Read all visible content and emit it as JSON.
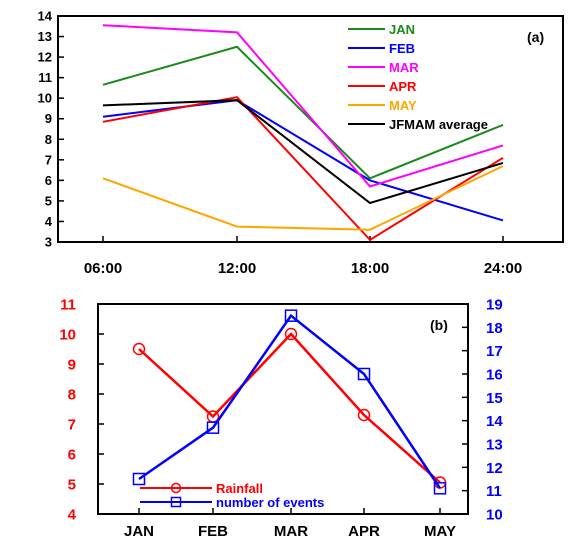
{
  "chart_data": [
    {
      "type": "line",
      "panel_label": "(a)",
      "categories": [
        "06:00",
        "12:00",
        "18:00",
        "24:00"
      ],
      "ylim": [
        3,
        14
      ],
      "yticks": [
        3,
        4,
        5,
        6,
        7,
        8,
        9,
        10,
        11,
        12,
        13,
        14
      ],
      "grid": false,
      "legend_position": "top-right",
      "series": [
        {
          "name": "JAN",
          "color": "#1a8a1a",
          "values": [
            10.65,
            12.5,
            6.1,
            8.7
          ]
        },
        {
          "name": "FEB",
          "color": "#0000ff",
          "values": [
            9.1,
            9.9,
            6.0,
            4.05
          ]
        },
        {
          "name": "MAR",
          "color": "#ff00ff",
          "values": [
            13.55,
            13.2,
            5.7,
            7.7
          ]
        },
        {
          "name": "APR",
          "color": "#ff0000",
          "values": [
            8.85,
            10.05,
            3.1,
            7.1
          ]
        },
        {
          "name": "MAY",
          "color": "#ffa500",
          "values": [
            6.1,
            3.75,
            3.6,
            6.7
          ]
        },
        {
          "name": "JFMAM average",
          "color": "#000000",
          "values": [
            9.65,
            9.9,
            4.9,
            6.85
          ]
        }
      ]
    },
    {
      "type": "line",
      "panel_label": "(b)",
      "categories": [
        "JAN",
        "FEB",
        "MAR",
        "APR",
        "MAY"
      ],
      "ylim_left": [
        4,
        11
      ],
      "yticks_left": [
        4,
        5,
        6,
        7,
        8,
        9,
        10,
        11
      ],
      "ylim_right": [
        10,
        19
      ],
      "yticks_right": [
        10,
        11,
        12,
        13,
        14,
        15,
        16,
        17,
        18,
        19
      ],
      "left_axis_color": "#ff0000",
      "right_axis_color": "#0000ff",
      "grid": false,
      "legend_position": "bottom-right",
      "series": [
        {
          "name": "Rainfall",
          "axis": "left",
          "color": "#ff0000",
          "marker": "circle",
          "values": [
            9.5,
            7.25,
            10.0,
            7.3,
            5.05
          ]
        },
        {
          "name": "number of events",
          "axis": "right",
          "color": "#0000ff",
          "marker": "square",
          "values": [
            11.5,
            13.7,
            18.5,
            16.0,
            11.1
          ]
        }
      ]
    }
  ]
}
